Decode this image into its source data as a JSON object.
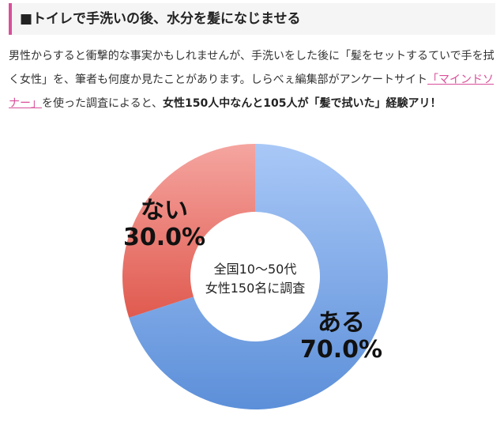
{
  "article": {
    "heading": "■トイレで手洗いの後、水分を髪になじませる",
    "para_before_link": "男性からすると衝撃的な事実かもしれませんが、手洗いをした後に「髪をセットするていで手を拭く女性」を、筆者も何度か見たことがあります。しらべぇ編集部がアンケートサイト",
    "link_text": "「マインドソナー」",
    "para_after_link": "を使った調査によると、",
    "para_bold": "女性150人中なんと105人が「髪で拭いた」経験アリ！"
  },
  "chart_data": {
    "type": "pie",
    "style": "donut",
    "slices": [
      {
        "label": "ある",
        "value": 70.0,
        "value_label": "70.0%",
        "color_top": "#a9c8f7",
        "color_bottom": "#5c8fd9"
      },
      {
        "label": "ない",
        "value": 30.0,
        "value_label": "30.0%",
        "color_top": "#f5a5a0",
        "color_bottom": "#e05a4f"
      }
    ],
    "center_text": [
      "全国10〜50代",
      "女性150名に調査"
    ],
    "start_angle": "12 o'clock, clockwise"
  }
}
